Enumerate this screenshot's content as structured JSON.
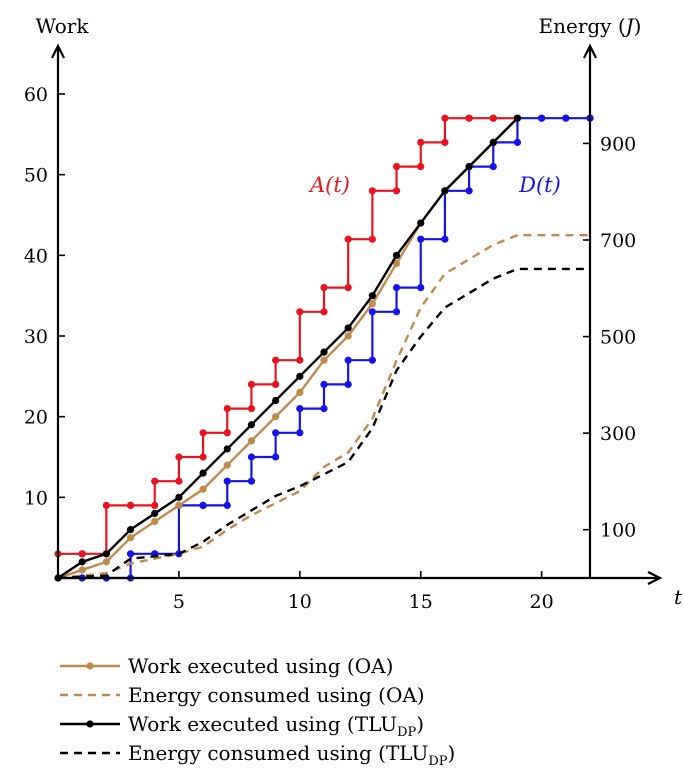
{
  "chart_data": {
    "type": "line",
    "y_left_label": "Work",
    "y_right_label": "Energy (J)",
    "xlabel": "t",
    "xlim": [
      0,
      22
    ],
    "ylim_left": [
      0,
      60
    ],
    "ylim_right": [
      0,
      1000
    ],
    "x_ticks": [
      5,
      10,
      15,
      20
    ],
    "y_left_ticks": [
      10,
      20,
      30,
      40,
      50,
      60
    ],
    "y_right_ticks": [
      100,
      300,
      500,
      700,
      900
    ],
    "annotations": [
      {
        "text": "A(t)",
        "color": "#e8141e"
      },
      {
        "text": "D(t)",
        "color": "#1414e8"
      }
    ],
    "step_series": [
      {
        "label": "A(t)",
        "color": "#e8141e",
        "points": [
          [
            0,
            3
          ],
          [
            1,
            3
          ],
          [
            2,
            9
          ],
          [
            3,
            9
          ],
          [
            4,
            12
          ],
          [
            5,
            15
          ],
          [
            6,
            18
          ],
          [
            7,
            21
          ],
          [
            8,
            24
          ],
          [
            9,
            27
          ],
          [
            10,
            33
          ],
          [
            11,
            36
          ],
          [
            12,
            42
          ],
          [
            13,
            48
          ],
          [
            14,
            51
          ],
          [
            15,
            54
          ],
          [
            16,
            57
          ],
          [
            17,
            57
          ],
          [
            18,
            57
          ],
          [
            19,
            57
          ]
        ]
      },
      {
        "label": "D(t)",
        "color": "#1414e8",
        "points": [
          [
            0,
            0
          ],
          [
            1,
            0
          ],
          [
            2,
            0
          ],
          [
            3,
            3
          ],
          [
            4,
            3
          ],
          [
            5,
            9
          ],
          [
            6,
            9
          ],
          [
            7,
            12
          ],
          [
            8,
            15
          ],
          [
            9,
            18
          ],
          [
            10,
            21
          ],
          [
            11,
            24
          ],
          [
            12,
            27
          ],
          [
            13,
            33
          ],
          [
            14,
            36
          ],
          [
            15,
            42
          ],
          [
            16,
            48
          ],
          [
            17,
            51
          ],
          [
            18,
            54
          ],
          [
            19,
            57
          ],
          [
            20,
            57
          ],
          [
            21,
            57
          ],
          [
            22,
            57
          ]
        ]
      }
    ],
    "series": [
      {
        "name": "Work executed using (OA)",
        "axis": "left",
        "style": "solid-marker",
        "color": "#c08a4c",
        "points": [
          [
            0,
            0
          ],
          [
            1,
            1
          ],
          [
            2,
            2
          ],
          [
            3,
            5
          ],
          [
            4,
            7
          ],
          [
            5,
            9
          ],
          [
            6,
            11
          ],
          [
            7,
            14
          ],
          [
            8,
            17
          ],
          [
            9,
            20
          ],
          [
            10,
            23
          ],
          [
            11,
            27
          ],
          [
            12,
            30
          ],
          [
            13,
            34
          ],
          [
            14,
            39
          ],
          [
            15,
            44
          ],
          [
            16,
            48
          ],
          [
            17,
            51
          ],
          [
            18,
            54
          ],
          [
            19,
            57
          ]
        ]
      },
      {
        "name": "Energy consumed using (OA)",
        "axis": "right",
        "style": "dashed",
        "color": "#c08a4c",
        "points": [
          [
            0,
            0
          ],
          [
            2,
            10
          ],
          [
            3,
            30
          ],
          [
            4,
            40
          ],
          [
            5,
            50
          ],
          [
            6,
            65
          ],
          [
            7,
            100
          ],
          [
            8,
            130
          ],
          [
            9,
            155
          ],
          [
            10,
            180
          ],
          [
            11,
            230
          ],
          [
            12,
            260
          ],
          [
            13,
            330
          ],
          [
            14,
            450
          ],
          [
            15,
            560
          ],
          [
            16,
            630
          ],
          [
            17,
            660
          ],
          [
            18,
            690
          ],
          [
            19,
            710
          ],
          [
            20,
            710
          ],
          [
            22,
            710
          ]
        ]
      },
      {
        "name": "Work executed using (TLUDP)",
        "axis": "left",
        "style": "solid-marker",
        "color": "#000000",
        "points": [
          [
            0,
            0
          ],
          [
            1,
            2
          ],
          [
            2,
            3
          ],
          [
            3,
            6
          ],
          [
            4,
            8
          ],
          [
            5,
            10
          ],
          [
            6,
            13
          ],
          [
            7,
            16
          ],
          [
            8,
            19
          ],
          [
            9,
            22
          ],
          [
            10,
            25
          ],
          [
            11,
            28
          ],
          [
            12,
            31
          ],
          [
            13,
            35
          ],
          [
            14,
            40
          ],
          [
            15,
            44
          ],
          [
            16,
            48
          ],
          [
            17,
            51
          ],
          [
            18,
            54
          ],
          [
            19,
            57
          ]
        ]
      },
      {
        "name": "Energy consumed using (TLUDP)",
        "axis": "right",
        "style": "dashed",
        "color": "#000000",
        "points": [
          [
            0,
            0
          ],
          [
            2,
            5
          ],
          [
            3,
            40
          ],
          [
            4,
            45
          ],
          [
            5,
            50
          ],
          [
            6,
            75
          ],
          [
            7,
            110
          ],
          [
            8,
            140
          ],
          [
            9,
            170
          ],
          [
            10,
            190
          ],
          [
            11,
            215
          ],
          [
            12,
            240
          ],
          [
            13,
            310
          ],
          [
            14,
            430
          ],
          [
            15,
            500
          ],
          [
            16,
            560
          ],
          [
            17,
            590
          ],
          [
            18,
            620
          ],
          [
            19,
            640
          ],
          [
            20,
            640
          ],
          [
            22,
            640
          ]
        ]
      }
    ],
    "legend": {
      "placement": "bottom",
      "entries": [
        {
          "label": "Work executed using (OA)",
          "sub": ""
        },
        {
          "label": "Energy consumed using (OA)",
          "sub": ""
        },
        {
          "label": "Work executed using (TLU",
          "sub": "DP"
        },
        {
          "label": "Energy consumed using (TLU",
          "sub": "DP"
        }
      ]
    }
  }
}
